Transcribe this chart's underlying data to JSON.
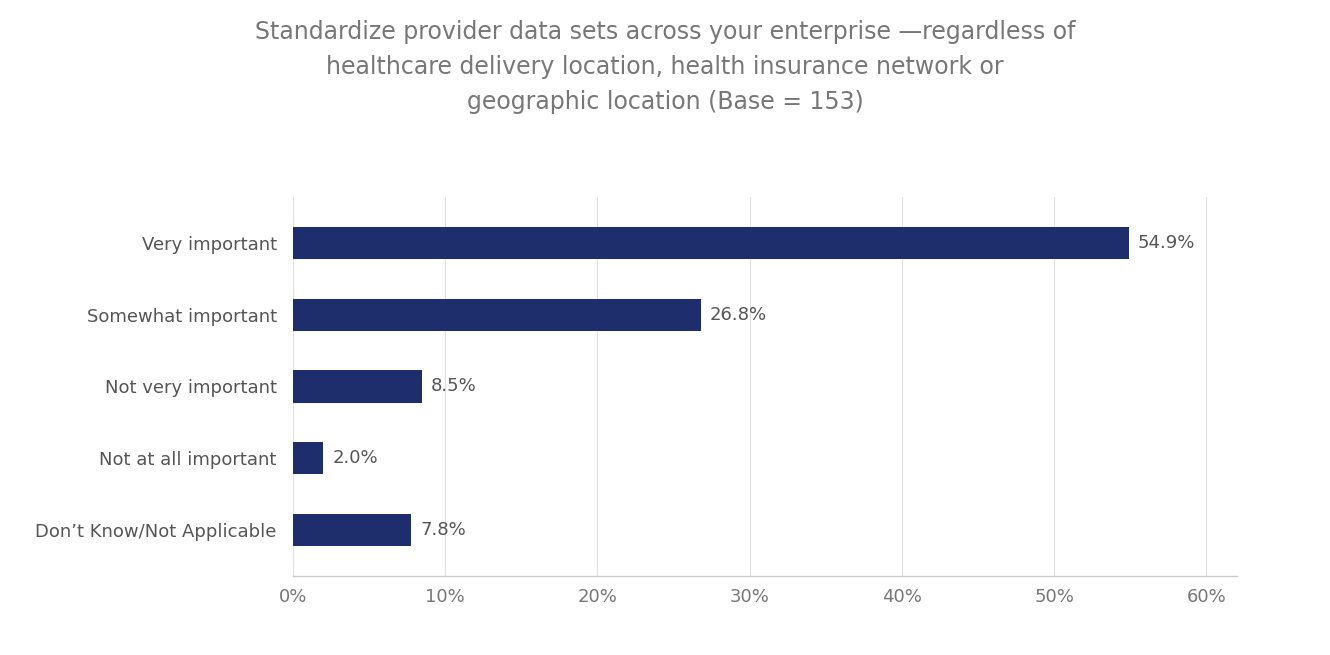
{
  "title_lines": [
    "Standardize provider data sets across your enterprise —regardless of",
    "healthcare delivery location, health insurance network or",
    "geographic location (Base = 153)"
  ],
  "categories": [
    "Very important",
    "Somewhat important",
    "Not very important",
    "Not at all important",
    "Don’t Know/Not Applicable"
  ],
  "values": [
    54.9,
    26.8,
    8.5,
    2.0,
    7.8
  ],
  "labels": [
    "54.9%",
    "26.8%",
    "8.5%",
    "2.0%",
    "7.8%"
  ],
  "bar_color": "#1e2d6b",
  "background_color": "#ffffff",
  "title_color": "#777777",
  "label_color": "#555555",
  "tick_label_color": "#777777",
  "xlim": [
    0,
    62
  ],
  "xticks": [
    0,
    10,
    20,
    30,
    40,
    50,
    60
  ],
  "xticklabels": [
    "0%",
    "10%",
    "20%",
    "30%",
    "40%",
    "50%",
    "60%"
  ],
  "title_fontsize": 17,
  "label_fontsize": 13,
  "tick_fontsize": 13,
  "bar_height": 0.45
}
